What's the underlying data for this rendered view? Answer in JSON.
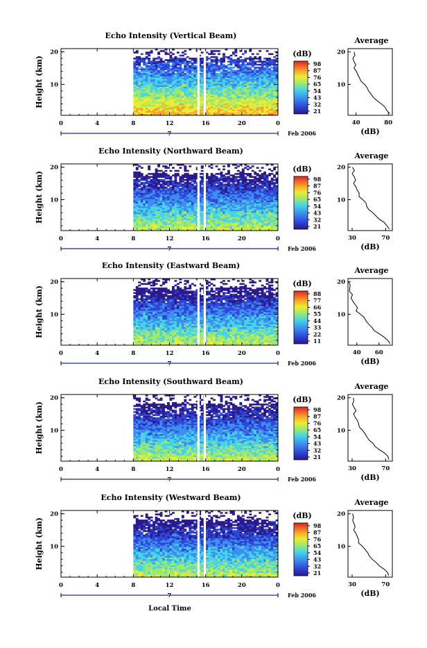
{
  "chart_data": [
    {
      "type": "heatmap",
      "title": "Echo Intensity (Vertical Beam)",
      "ylabel": "Height (km)",
      "xlabel": "Local Time",
      "x_ticks": [
        "0",
        "4",
        "8",
        "12",
        "16",
        "20",
        "0"
      ],
      "y_ticks": [
        "20",
        "10"
      ],
      "date_marker": "7",
      "date_label": "Feb 2006",
      "colorbar_unit": "(dB)",
      "colorbar_ticks": [
        "98",
        "87",
        "76",
        "65",
        "54",
        "43",
        "32",
        "21"
      ],
      "data_start_hour": 8,
      "gaps_hours": [
        15.2,
        15.9
      ],
      "profile": {
        "title": "Average",
        "xlabel": "(dB)",
        "x_ticks": [
          "40",
          "80"
        ],
        "xlim": [
          30,
          85
        ],
        "y_ticks": [
          "20",
          "10"
        ],
        "heights_km": [
          1,
          2,
          3,
          4,
          5,
          6,
          7,
          8,
          9,
          10,
          11,
          12,
          13,
          14,
          15,
          16,
          17,
          18,
          19,
          20
        ],
        "values_db": [
          82,
          78,
          76,
          72,
          66,
          62,
          58,
          56,
          54,
          50,
          46,
          44,
          42,
          40,
          38,
          40,
          38,
          36,
          38,
          37
        ]
      }
    },
    {
      "type": "heatmap",
      "title": "Echo Intensity (Northward Beam)",
      "ylabel": "Height (km)",
      "x_ticks": [
        "0",
        "4",
        "8",
        "12",
        "16",
        "20",
        "0"
      ],
      "y_ticks": [
        "20",
        "10"
      ],
      "date_marker": "7",
      "date_label": "Feb 2006",
      "colorbar_unit": "(dB)",
      "colorbar_ticks": [
        "98",
        "87",
        "76",
        "65",
        "54",
        "43",
        "32",
        "21"
      ],
      "data_start_hour": 8,
      "gaps_hours": [
        15.2,
        15.9
      ],
      "profile": {
        "title": "Average",
        "xlabel": "(dB)",
        "x_ticks": [
          "30",
          "70"
        ],
        "xlim": [
          25,
          78
        ],
        "y_ticks": [
          "20",
          "10"
        ],
        "heights_km": [
          1,
          2,
          3,
          4,
          5,
          6,
          7,
          8,
          9,
          10,
          11,
          12,
          13,
          14,
          15,
          16,
          17,
          18,
          19,
          20
        ],
        "values_db": [
          74,
          72,
          68,
          62,
          58,
          54,
          50,
          48,
          46,
          42,
          38,
          38,
          36,
          34,
          32,
          34,
          32,
          30,
          32,
          31
        ]
      }
    },
    {
      "type": "heatmap",
      "title": "Echo Intensity (Eastward Beam)",
      "ylabel": "Height (km)",
      "x_ticks": [
        "0",
        "4",
        "8",
        "12",
        "16",
        "20",
        "0"
      ],
      "y_ticks": [
        "20",
        "10"
      ],
      "date_marker": "7",
      "date_label": "Feb 2006",
      "colorbar_unit": "(dB)",
      "colorbar_ticks": [
        "88",
        "77",
        "66",
        "55",
        "44",
        "33",
        "22",
        "11"
      ],
      "data_start_hour": 8,
      "gaps_hours": [
        15.2,
        15.9
      ],
      "profile": {
        "title": "Average",
        "xlabel": "(dB)",
        "x_ticks": [
          "40",
          "60"
        ],
        "xlim": [
          32,
          72
        ],
        "y_ticks": [
          "20",
          "10"
        ],
        "heights_km": [
          1,
          2,
          3,
          4,
          5,
          6,
          7,
          8,
          9,
          10,
          11,
          12,
          13,
          14,
          15,
          16,
          17,
          18,
          19,
          20
        ],
        "values_db": [
          70,
          68,
          64,
          60,
          56,
          53,
          50,
          48,
          46,
          43,
          40,
          40,
          38,
          36,
          35,
          36,
          34,
          33,
          34,
          33
        ]
      }
    },
    {
      "type": "heatmap",
      "title": "Echo Intensity (Southward Beam)",
      "ylabel": "Height (km)",
      "x_ticks": [
        "0",
        "4",
        "8",
        "12",
        "16",
        "20",
        "0"
      ],
      "y_ticks": [
        "20",
        "10"
      ],
      "date_marker": "7",
      "date_label": "Feb 2006",
      "colorbar_unit": "(dB)",
      "colorbar_ticks": [
        "98",
        "87",
        "76",
        "65",
        "54",
        "43",
        "32",
        "21"
      ],
      "data_start_hour": 8,
      "gaps_hours": [
        15.2,
        15.9
      ],
      "profile": {
        "title": "Average",
        "xlabel": "(dB)",
        "x_ticks": [
          "30",
          "70"
        ],
        "xlim": [
          25,
          78
        ],
        "y_ticks": [
          "20",
          "10"
        ],
        "heights_km": [
          1,
          2,
          3,
          4,
          5,
          6,
          7,
          8,
          9,
          10,
          11,
          12,
          13,
          14,
          15,
          16,
          17,
          18,
          19,
          20
        ],
        "values_db": [
          74,
          72,
          68,
          62,
          58,
          54,
          50,
          48,
          46,
          42,
          38,
          38,
          36,
          34,
          32,
          34,
          32,
          30,
          32,
          31
        ]
      }
    },
    {
      "type": "heatmap",
      "title": "Echo Intensity (Westward Beam)",
      "ylabel": "Height (km)",
      "x_ticks": [
        "0",
        "4",
        "8",
        "12",
        "16",
        "20",
        "0"
      ],
      "y_ticks": [
        "20",
        "10"
      ],
      "date_marker": "7",
      "date_label": "Feb 2006",
      "colorbar_unit": "(dB)",
      "colorbar_ticks": [
        "98",
        "87",
        "76",
        "65",
        "54",
        "43",
        "32",
        "21"
      ],
      "data_start_hour": 8,
      "gaps_hours": [
        15.2,
        15.9
      ],
      "profile": {
        "title": "Average",
        "xlabel": "(dB)",
        "x_ticks": [
          "30",
          "70"
        ],
        "xlim": [
          25,
          78
        ],
        "y_ticks": [
          "20",
          "10"
        ],
        "heights_km": [
          1,
          2,
          3,
          4,
          5,
          6,
          7,
          8,
          9,
          10,
          11,
          12,
          13,
          14,
          15,
          16,
          17,
          18,
          19,
          20
        ],
        "values_db": [
          74,
          72,
          68,
          62,
          58,
          54,
          50,
          48,
          46,
          42,
          38,
          38,
          36,
          34,
          32,
          34,
          32,
          30,
          32,
          31
        ]
      }
    }
  ],
  "colors": {
    "scale": [
      "#2a1a8c",
      "#2f47d8",
      "#3c8ff0",
      "#45d4e8",
      "#9ee870",
      "#ecec30",
      "#f7a32a",
      "#e02222"
    ],
    "axis": "#000000",
    "timeline": "#1a2a9a"
  }
}
